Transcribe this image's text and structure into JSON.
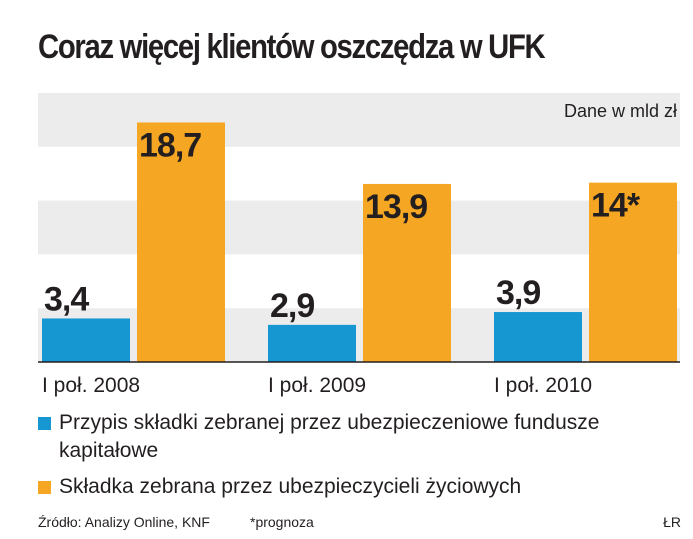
{
  "title": "Coraz więcej klientów oszczędza w UFK",
  "unit_note": "Dane w mld zł",
  "colors": {
    "series1": "#1697d2",
    "series2": "#f5a623",
    "band": "#ececec",
    "axis": "#231f20",
    "text": "#231f20"
  },
  "chart_data": {
    "type": "bar",
    "categories": [
      "I poł. 2008",
      "I poł. 2009",
      "I poł. 2010"
    ],
    "series": [
      {
        "name": "Przypis składki zebranej przez ubezpieczeniowe fundusze kapitałowe",
        "values": [
          3.4,
          2.9,
          3.9
        ],
        "labels": [
          "3,4",
          "2,9",
          "3,9"
        ]
      },
      {
        "name": "Składka zebrana przez ubezpieczycieli życiowych",
        "values": [
          18.7,
          13.9,
          14.0
        ],
        "labels": [
          "18,7",
          "13,9",
          "14*"
        ]
      }
    ],
    "ylim": [
      0,
      21
    ],
    "grid": "alternating horizontal bands",
    "legend_position": "bottom"
  },
  "legend": [
    "Przypis składki zebranej przez ubezpieczeniowe fundusze kapitałowe",
    "Składka zebrana przez ubezpieczycieli życiowych"
  ],
  "source": "Źródło: Analizy Online, KNF",
  "footnote": "*prognoza",
  "author": "ŁR"
}
